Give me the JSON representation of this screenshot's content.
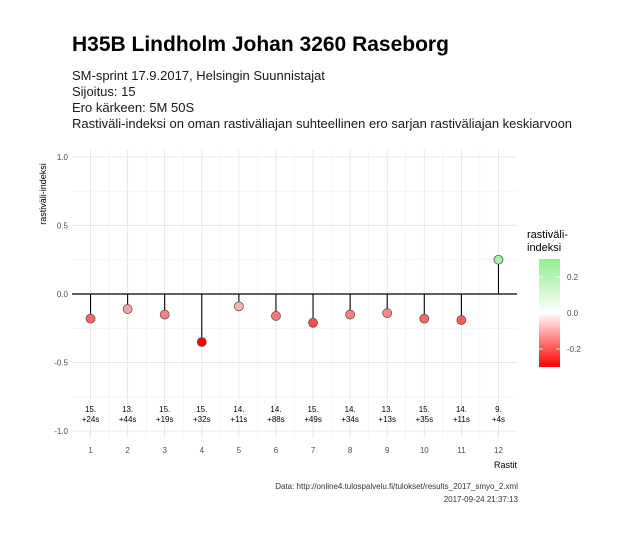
{
  "header": {
    "title": "H35B Lindholm Johan 3260 Raseborg",
    "subtitle_lines": [
      "SM-sprint 17.9.2017, Helsingin Suunnistajat",
      "Sijoitus: 15",
      "Ero kärkeen: 5M 50S",
      "Rastiväli-indeksi on oman rastiväliajan suhteellinen ero sarjan rastiväliajan keskiarvoon"
    ]
  },
  "caption": {
    "source": "Data: http://online4.tulospalvelu.fi/tulokset/results_2017_smyo_2.xml",
    "timestamp": "2017-09-24 21:37:13"
  },
  "chart_data": {
    "type": "scatter",
    "style": "lollipop",
    "xlabel": "Rastit",
    "ylabel": "rastiväli-indeksi",
    "x": [
      1,
      2,
      3,
      4,
      5,
      6,
      7,
      8,
      9,
      10,
      11,
      12
    ],
    "y": [
      -0.18,
      -0.11,
      -0.15,
      -0.35,
      -0.09,
      -0.16,
      -0.21,
      -0.15,
      -0.14,
      -0.18,
      -0.19,
      0.25
    ],
    "point_labels": [
      [
        "15.",
        "+24s"
      ],
      [
        "13.",
        "+44s"
      ],
      [
        "15.",
        "+19s"
      ],
      [
        "15.",
        "+32s"
      ],
      [
        "14.",
        "+11s"
      ],
      [
        "14.",
        "+88s"
      ],
      [
        "15.",
        "+49s"
      ],
      [
        "14.",
        "+34s"
      ],
      [
        "13.",
        "+13s"
      ],
      [
        "15.",
        "+35s"
      ],
      [
        "14.",
        "+11s"
      ],
      [
        "9.",
        "+4s"
      ]
    ],
    "xlim": [
      0.5,
      12.5
    ],
    "ylim": [
      -1.05,
      1.05
    ],
    "yticks": [
      1.0,
      0.5,
      0.0,
      -0.5,
      -1.0
    ],
    "ytick_labels": [
      "1.0",
      "0.5",
      "0.0",
      "-0.5",
      "-1.0"
    ],
    "xtick_labels": [
      "1",
      "2",
      "3",
      "4",
      "5",
      "6",
      "7",
      "8",
      "9",
      "10",
      "11",
      "12"
    ],
    "grid": true,
    "legend": {
      "title_lines": [
        "rastiväli-",
        "indeksi"
      ],
      "placement": "right",
      "ticks": [
        0.2,
        0.0,
        -0.2
      ],
      "tick_labels": [
        "0.2",
        "0.0",
        "-0.2"
      ],
      "range": [
        -0.3,
        0.3
      ],
      "color_high": "#90ee90",
      "color_mid": "#ffffff",
      "color_low": "#ff0000"
    }
  }
}
